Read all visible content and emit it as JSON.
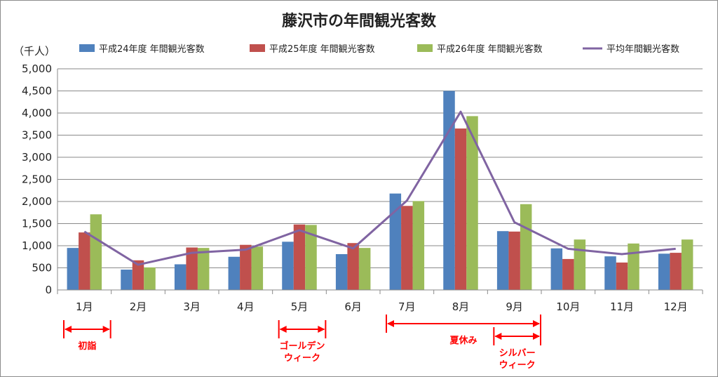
{
  "chart_data": {
    "type": "bar",
    "title": "藤沢市の年間観光客数",
    "unit_label": "（千人）",
    "categories": [
      "1月",
      "2月",
      "3月",
      "4月",
      "5月",
      "6月",
      "7月",
      "8月",
      "9月",
      "10月",
      "11月",
      "12月"
    ],
    "ylim": [
      0,
      5000
    ],
    "y_ticks": [
      "0",
      "500",
      "1,000",
      "1,500",
      "2,000",
      "2,500",
      "3,000",
      "3,500",
      "4,000",
      "4,500",
      "5,000"
    ],
    "grid": true,
    "legend_position": "top",
    "series": [
      {
        "name": "平成24年度 年間観光客数",
        "type": "bar",
        "color": "#4f81bd",
        "values": [
          950,
          460,
          580,
          750,
          1090,
          810,
          2180,
          4500,
          1330,
          940,
          760,
          820
        ]
      },
      {
        "name": "平成25年度 年間観光客数",
        "type": "bar",
        "color": "#c0504d",
        "values": [
          1300,
          670,
          960,
          1020,
          1480,
          1060,
          1900,
          3650,
          1320,
          700,
          620,
          840
        ]
      },
      {
        "name": "平成26年度 年間観光客数",
        "type": "bar",
        "color": "#9bbb59",
        "values": [
          1710,
          510,
          950,
          980,
          1470,
          950,
          2010,
          3930,
          1940,
          1140,
          1050,
          1140
        ]
      },
      {
        "name": "平均年間観光客数",
        "type": "line",
        "color": "#8064a2",
        "values": [
          1320,
          570,
          840,
          910,
          1350,
          940,
          2020,
          4030,
          1530,
          930,
          810,
          930
        ]
      }
    ],
    "annotations": [
      {
        "label": "初詣",
        "from": "1月",
        "to": "1月"
      },
      {
        "label": "ゴールデン\nウィーク",
        "from": "5月",
        "to": "5月"
      },
      {
        "label": "夏休み",
        "from": "7月",
        "to": "9月"
      },
      {
        "label": "シルバー\nウィーク",
        "from": "9月",
        "to": "9月"
      }
    ]
  }
}
